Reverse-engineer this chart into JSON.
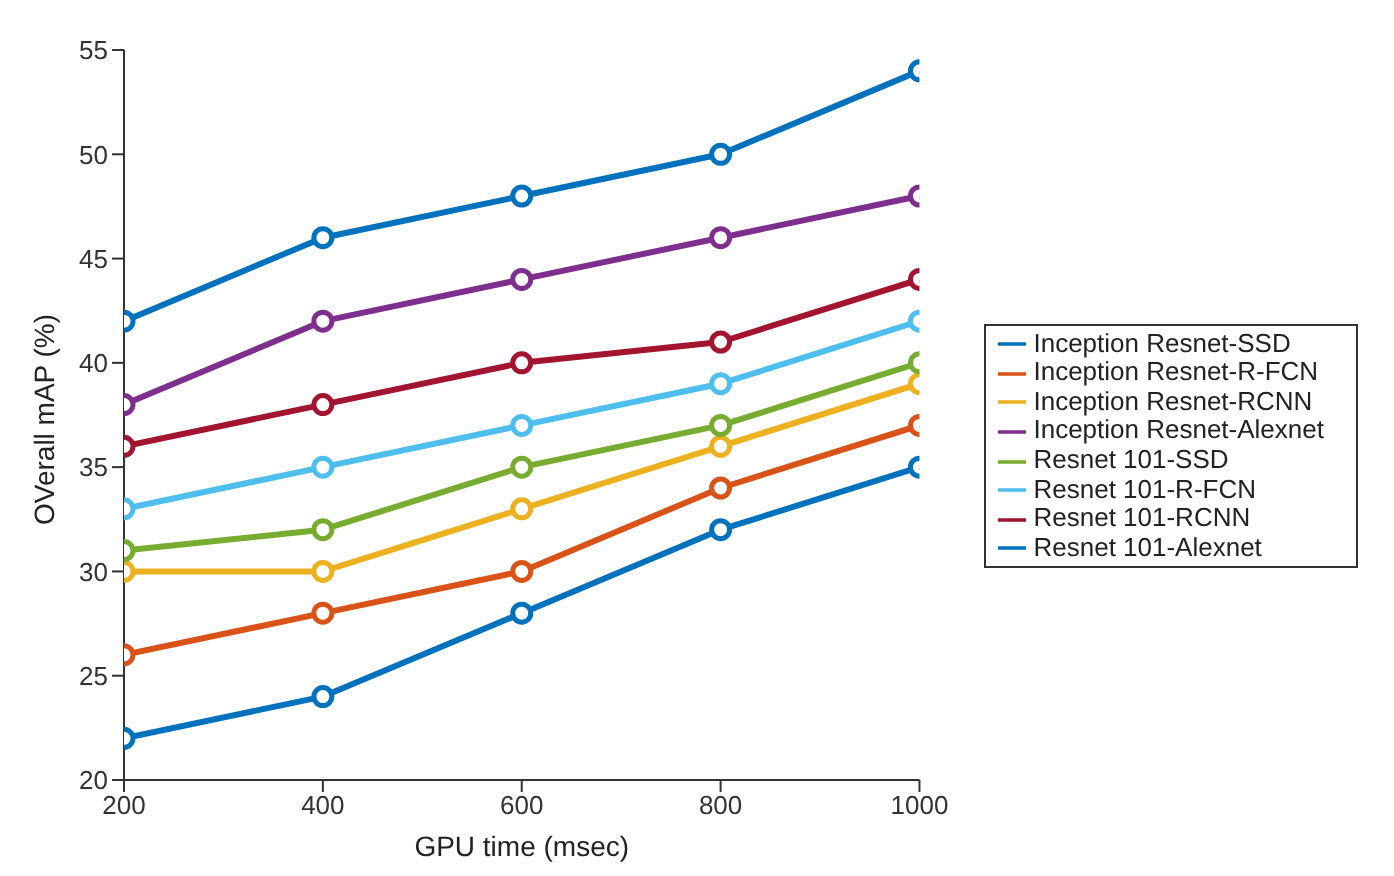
{
  "chart_data": {
    "type": "line",
    "xlabel": "GPU time (msec)",
    "ylabel": "OVerall mAP (%)",
    "x": [
      200,
      400,
      600,
      800,
      1000
    ],
    "series": [
      {
        "name": "Inception Resnet-SSD",
        "color": "#0072bd",
        "values": [
          42,
          46,
          48,
          50,
          54
        ]
      },
      {
        "name": "Inception Resnet-R-FCN",
        "color": "#d95319",
        "values": [
          26,
          28,
          30,
          34,
          37
        ]
      },
      {
        "name": "Inception Resnet-RCNN",
        "color": "#edb120",
        "values": [
          30,
          30,
          33,
          36,
          39
        ]
      },
      {
        "name": "Inception Resnet-Alexnet",
        "color": "#7e2f8e",
        "values": [
          38,
          42,
          44,
          46,
          48
        ]
      },
      {
        "name": "Resnet 101-SSD",
        "color": "#77ac30",
        "values": [
          31,
          32,
          35,
          37,
          40
        ]
      },
      {
        "name": "Resnet 101-R-FCN",
        "color": "#4dbeee",
        "values": [
          33,
          35,
          37,
          39,
          42
        ]
      },
      {
        "name": "Resnet 101-RCNN",
        "color": "#a2142f",
        "values": [
          36,
          38,
          40,
          41,
          44
        ]
      },
      {
        "name": "Resnet 101-Alexnet",
        "color": "#0072bd",
        "values": [
          22,
          24,
          28,
          32,
          35
        ]
      }
    ],
    "xlim": [
      200,
      1000
    ],
    "xticks": [
      200,
      400,
      600,
      800,
      1000
    ],
    "ylim": [
      20,
      55
    ],
    "yticks": [
      20,
      25,
      30,
      35,
      40,
      45,
      50,
      55
    ],
    "legend": "right",
    "marker": "circle",
    "line_style": "solid",
    "grid": false
  }
}
